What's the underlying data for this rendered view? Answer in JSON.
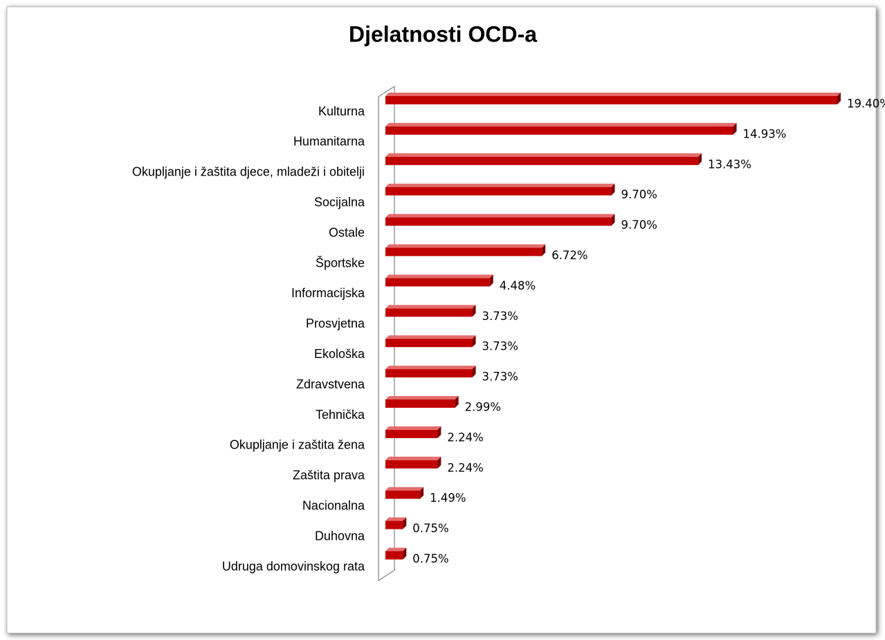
{
  "chart_data": {
    "type": "bar",
    "orientation": "horizontal",
    "title": "Djelatnosti OCD-a",
    "categories": [
      "Kulturna",
      "Humanitarna",
      "Okupljanje i žaštita djece, mladeži i obitelji",
      "Socijalna",
      "Ostale",
      "Športske",
      "Informacijska",
      "Prosvjetna",
      "Ekološka",
      "Zdravstvena",
      "Tehnička",
      "Okupljanje i zaštita žena",
      "Zaštita prava",
      "Nacionalna",
      "Duhovna",
      "Udruga domovinskog rata"
    ],
    "values": [
      19.4,
      14.93,
      13.43,
      9.7,
      9.7,
      6.72,
      4.48,
      3.73,
      3.73,
      3.73,
      2.99,
      2.24,
      2.24,
      1.49,
      0.75,
      0.75
    ],
    "value_labels": [
      "19.40%",
      "14.93%",
      "13.43%",
      "9.70%",
      "9.70%",
      "6.72%",
      "4.48%",
      "3.73%",
      "3.73%",
      "3.73%",
      "2.99%",
      "2.24%",
      "2.24%",
      "1.49%",
      "0.75%",
      "0.75%"
    ],
    "color": "#c00000"
  }
}
